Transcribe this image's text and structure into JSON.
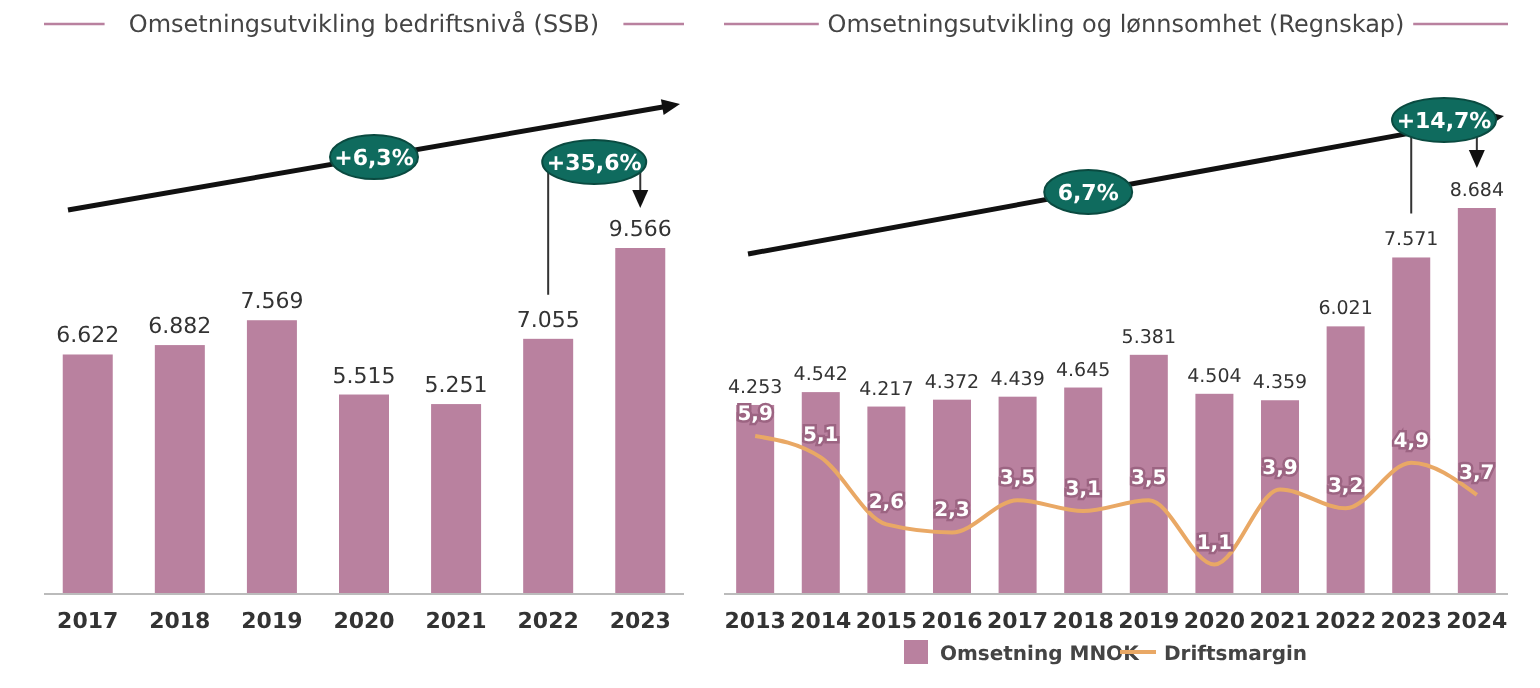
{
  "chart_data": [
    {
      "type": "bar",
      "title": "Omsetningsutvikling bedriftsnivå (SSB)",
      "categories": [
        "2017",
        "2018",
        "2019",
        "2020",
        "2021",
        "2022",
        "2023"
      ],
      "values": [
        6622,
        6882,
        7569,
        5515,
        5251,
        7055,
        9566
      ],
      "value_labels": [
        "6.622",
        "6.882",
        "7.569",
        "5.515",
        "5.251",
        "7.055",
        "9.566"
      ],
      "color": "#b9819f",
      "annotations": [
        "+6,3%",
        "+35,6%"
      ]
    },
    {
      "type": "bar",
      "title": "Omsetningsutvikling og lønnsomhet (Regnskap)",
      "categories": [
        "2013",
        "2014",
        "2015",
        "2016",
        "2017",
        "2018",
        "2019",
        "2020",
        "2021",
        "2022",
        "2023",
        "2024"
      ],
      "legend": "bottom",
      "annotations": [
        "6,7%",
        "+14,7%"
      ],
      "series": [
        {
          "name": "Omsetning MNOK",
          "color": "#b9819f",
          "values": [
            4253,
            4542,
            4217,
            4372,
            4439,
            4645,
            5381,
            4504,
            4359,
            6021,
            7571,
            8684
          ],
          "value_labels": [
            "4.253",
            "4.542",
            "4.217",
            "4.372",
            "4.439",
            "4.645",
            "5.381",
            "4.504",
            "4.359",
            "6.021",
            "7.571",
            "8.684"
          ]
        },
        {
          "name": "Driftsmargin",
          "type": "line",
          "axis": "y2",
          "color": "#e9a865",
          "values": [
            5.9,
            5.1,
            2.6,
            2.3,
            3.5,
            3.1,
            3.5,
            1.1,
            3.9,
            3.2,
            4.9,
            3.7
          ],
          "value_labels": [
            "5,9",
            "5,1",
            "2,6",
            "2,3",
            "3,5",
            "3,1",
            "3,5",
            "1,1",
            "3,9",
            "3,2",
            "4,9",
            "3,7"
          ]
        }
      ]
    }
  ]
}
